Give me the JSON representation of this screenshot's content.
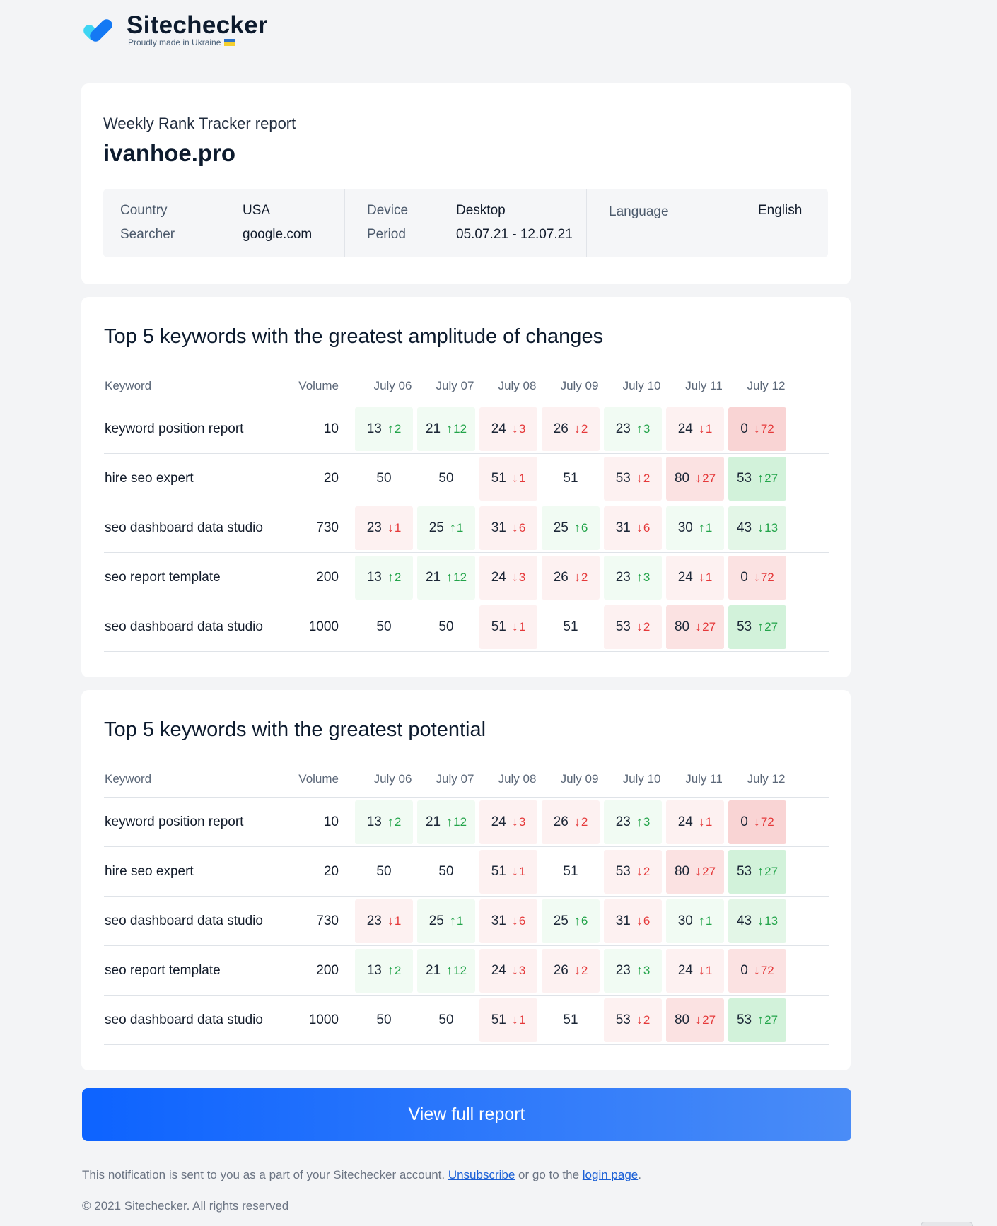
{
  "brand": {
    "name": "Sitechecker",
    "tagline": "Proudly made in Ukraine",
    "logo_colors": [
      "#1479f4",
      "#3dd5f3"
    ]
  },
  "header": {
    "subtitle": "Weekly Rank Tracker report",
    "domain": "ivanhoe.pro",
    "info": {
      "country_label": "Country",
      "country_value": "USA",
      "searcher_label": "Searcher",
      "searcher_value": "google.com",
      "device_label": "Device",
      "device_value": "Desktop",
      "period_label": "Period",
      "period_value": "05.07.21 - 12.07.21",
      "language_label": "Language",
      "language_value": "English"
    }
  },
  "colors": {
    "up_text": "#23a44a",
    "down_text": "#e5393a",
    "up_bg": [
      "#f1fbf3",
      "#e3f6e7",
      "#d2f2da"
    ],
    "down_bg": [
      "#fdf1f1",
      "#fbe2e2",
      "#f9d4d4"
    ],
    "button": "#0d63ff"
  },
  "tables": [
    {
      "title": "Top 5 keywords with the greatest amplitude of changes",
      "headers": [
        "Keyword",
        "Volume",
        "July 06",
        "July 07",
        "July 08",
        "July 09",
        "July 10",
        "July 11",
        "July 12"
      ],
      "rows": [
        {
          "keyword": "keyword position report",
          "volume": "10",
          "cells": [
            {
              "pos": "13",
              "dir": "up",
              "delta": "2",
              "shade": "l"
            },
            {
              "pos": "21",
              "dir": "up",
              "delta": "12",
              "shade": "l"
            },
            {
              "pos": "24",
              "dir": "down",
              "delta": "3",
              "shade": "l"
            },
            {
              "pos": "26",
              "dir": "down",
              "delta": "2",
              "shade": "l"
            },
            {
              "pos": "23",
              "dir": "up",
              "delta": "3",
              "shade": "l"
            },
            {
              "pos": "24",
              "dir": "down",
              "delta": "1",
              "shade": "l"
            },
            {
              "pos": "0",
              "dir": "down",
              "delta": "72",
              "shade": "s"
            }
          ]
        },
        {
          "keyword": "hire seo expert",
          "volume": "20",
          "cells": [
            {
              "pos": "50",
              "dir": "none",
              "delta": "",
              "shade": ""
            },
            {
              "pos": "50",
              "dir": "none",
              "delta": "",
              "shade": ""
            },
            {
              "pos": "51",
              "dir": "down",
              "delta": "1",
              "shade": "l"
            },
            {
              "pos": "51",
              "dir": "none",
              "delta": "",
              "shade": ""
            },
            {
              "pos": "53",
              "dir": "down",
              "delta": "2",
              "shade": "l"
            },
            {
              "pos": "80",
              "dir": "down",
              "delta": "27",
              "shade": "m"
            },
            {
              "pos": "53",
              "dir": "up",
              "delta": "27",
              "shade": "s"
            }
          ]
        },
        {
          "keyword": "seo dashboard data studio",
          "volume": "730",
          "cells": [
            {
              "pos": "23",
              "dir": "down",
              "delta": "1",
              "shade": "l"
            },
            {
              "pos": "25",
              "dir": "up",
              "delta": "1",
              "shade": "l"
            },
            {
              "pos": "31",
              "dir": "down",
              "delta": "6",
              "shade": "l"
            },
            {
              "pos": "25",
              "dir": "up",
              "delta": "6",
              "shade": "l"
            },
            {
              "pos": "31",
              "dir": "down",
              "delta": "6",
              "shade": "l"
            },
            {
              "pos": "30",
              "dir": "up",
              "delta": "1",
              "shade": "l"
            },
            {
              "pos": "43",
              "dir": "down",
              "delta": "13",
              "shade": "m",
              "green": true
            }
          ]
        },
        {
          "keyword": "seo report template",
          "volume": "200",
          "cells": [
            {
              "pos": "13",
              "dir": "up",
              "delta": "2",
              "shade": "l"
            },
            {
              "pos": "21",
              "dir": "up",
              "delta": "12",
              "shade": "l"
            },
            {
              "pos": "24",
              "dir": "down",
              "delta": "3",
              "shade": "l"
            },
            {
              "pos": "26",
              "dir": "down",
              "delta": "2",
              "shade": "l"
            },
            {
              "pos": "23",
              "dir": "up",
              "delta": "3",
              "shade": "l"
            },
            {
              "pos": "24",
              "dir": "down",
              "delta": "1",
              "shade": "l"
            },
            {
              "pos": "0",
              "dir": "down",
              "delta": "72",
              "shade": "m"
            }
          ]
        },
        {
          "keyword": "seo dashboard data studio",
          "volume": "1000",
          "cells": [
            {
              "pos": "50",
              "dir": "none",
              "delta": "",
              "shade": ""
            },
            {
              "pos": "50",
              "dir": "none",
              "delta": "",
              "shade": ""
            },
            {
              "pos": "51",
              "dir": "down",
              "delta": "1",
              "shade": "l"
            },
            {
              "pos": "51",
              "dir": "none",
              "delta": "",
              "shade": ""
            },
            {
              "pos": "53",
              "dir": "down",
              "delta": "2",
              "shade": "l"
            },
            {
              "pos": "80",
              "dir": "down",
              "delta": "27",
              "shade": "m"
            },
            {
              "pos": "53",
              "dir": "up",
              "delta": "27",
              "shade": "s"
            }
          ]
        }
      ]
    },
    {
      "title": "Top 5 keywords with the greatest potential",
      "headers": [
        "Keyword",
        "Volume",
        "July 06",
        "July 07",
        "July 08",
        "July 09",
        "July 10",
        "July 11",
        "July 12"
      ],
      "rows": [
        {
          "keyword": "keyword position report",
          "volume": "10",
          "cells": [
            {
              "pos": "13",
              "dir": "up",
              "delta": "2",
              "shade": "l"
            },
            {
              "pos": "21",
              "dir": "up",
              "delta": "12",
              "shade": "l"
            },
            {
              "pos": "24",
              "dir": "down",
              "delta": "3",
              "shade": "l"
            },
            {
              "pos": "26",
              "dir": "down",
              "delta": "2",
              "shade": "l"
            },
            {
              "pos": "23",
              "dir": "up",
              "delta": "3",
              "shade": "l"
            },
            {
              "pos": "24",
              "dir": "down",
              "delta": "1",
              "shade": "l"
            },
            {
              "pos": "0",
              "dir": "down",
              "delta": "72",
              "shade": "s"
            }
          ]
        },
        {
          "keyword": "hire seo expert",
          "volume": "20",
          "cells": [
            {
              "pos": "50",
              "dir": "none",
              "delta": "",
              "shade": ""
            },
            {
              "pos": "50",
              "dir": "none",
              "delta": "",
              "shade": ""
            },
            {
              "pos": "51",
              "dir": "down",
              "delta": "1",
              "shade": "l"
            },
            {
              "pos": "51",
              "dir": "none",
              "delta": "",
              "shade": ""
            },
            {
              "pos": "53",
              "dir": "down",
              "delta": "2",
              "shade": "l"
            },
            {
              "pos": "80",
              "dir": "down",
              "delta": "27",
              "shade": "m"
            },
            {
              "pos": "53",
              "dir": "up",
              "delta": "27",
              "shade": "s"
            }
          ]
        },
        {
          "keyword": "seo dashboard data studio",
          "volume": "730",
          "cells": [
            {
              "pos": "23",
              "dir": "down",
              "delta": "1",
              "shade": "l"
            },
            {
              "pos": "25",
              "dir": "up",
              "delta": "1",
              "shade": "l"
            },
            {
              "pos": "31",
              "dir": "down",
              "delta": "6",
              "shade": "l"
            },
            {
              "pos": "25",
              "dir": "up",
              "delta": "6",
              "shade": "l"
            },
            {
              "pos": "31",
              "dir": "down",
              "delta": "6",
              "shade": "l"
            },
            {
              "pos": "30",
              "dir": "up",
              "delta": "1",
              "shade": "l"
            },
            {
              "pos": "43",
              "dir": "down",
              "delta": "13",
              "shade": "m",
              "green": true
            }
          ]
        },
        {
          "keyword": "seo report template",
          "volume": "200",
          "cells": [
            {
              "pos": "13",
              "dir": "up",
              "delta": "2",
              "shade": "l"
            },
            {
              "pos": "21",
              "dir": "up",
              "delta": "12",
              "shade": "l"
            },
            {
              "pos": "24",
              "dir": "down",
              "delta": "3",
              "shade": "l"
            },
            {
              "pos": "26",
              "dir": "down",
              "delta": "2",
              "shade": "l"
            },
            {
              "pos": "23",
              "dir": "up",
              "delta": "3",
              "shade": "l"
            },
            {
              "pos": "24",
              "dir": "down",
              "delta": "1",
              "shade": "l"
            },
            {
              "pos": "0",
              "dir": "down",
              "delta": "72",
              "shade": "m"
            }
          ]
        },
        {
          "keyword": "seo dashboard data studio",
          "volume": "1000",
          "cells": [
            {
              "pos": "50",
              "dir": "none",
              "delta": "",
              "shade": ""
            },
            {
              "pos": "50",
              "dir": "none",
              "delta": "",
              "shade": ""
            },
            {
              "pos": "51",
              "dir": "down",
              "delta": "1",
              "shade": "l"
            },
            {
              "pos": "51",
              "dir": "none",
              "delta": "",
              "shade": ""
            },
            {
              "pos": "53",
              "dir": "down",
              "delta": "2",
              "shade": "l"
            },
            {
              "pos": "80",
              "dir": "down",
              "delta": "27",
              "shade": "m"
            },
            {
              "pos": "53",
              "dir": "up",
              "delta": "27",
              "shade": "s"
            }
          ]
        }
      ]
    }
  ],
  "cta": {
    "label": "View full report"
  },
  "footer": {
    "note_before": "This notification is sent to you as a part of your Sitechecker account. ",
    "unsubscribe_label": "Unsubscribe",
    "note_middle": " or go to the ",
    "login_label": "login page",
    "note_after": ".",
    "copyright": "© 2021 Sitechecker. All rights reserved"
  }
}
